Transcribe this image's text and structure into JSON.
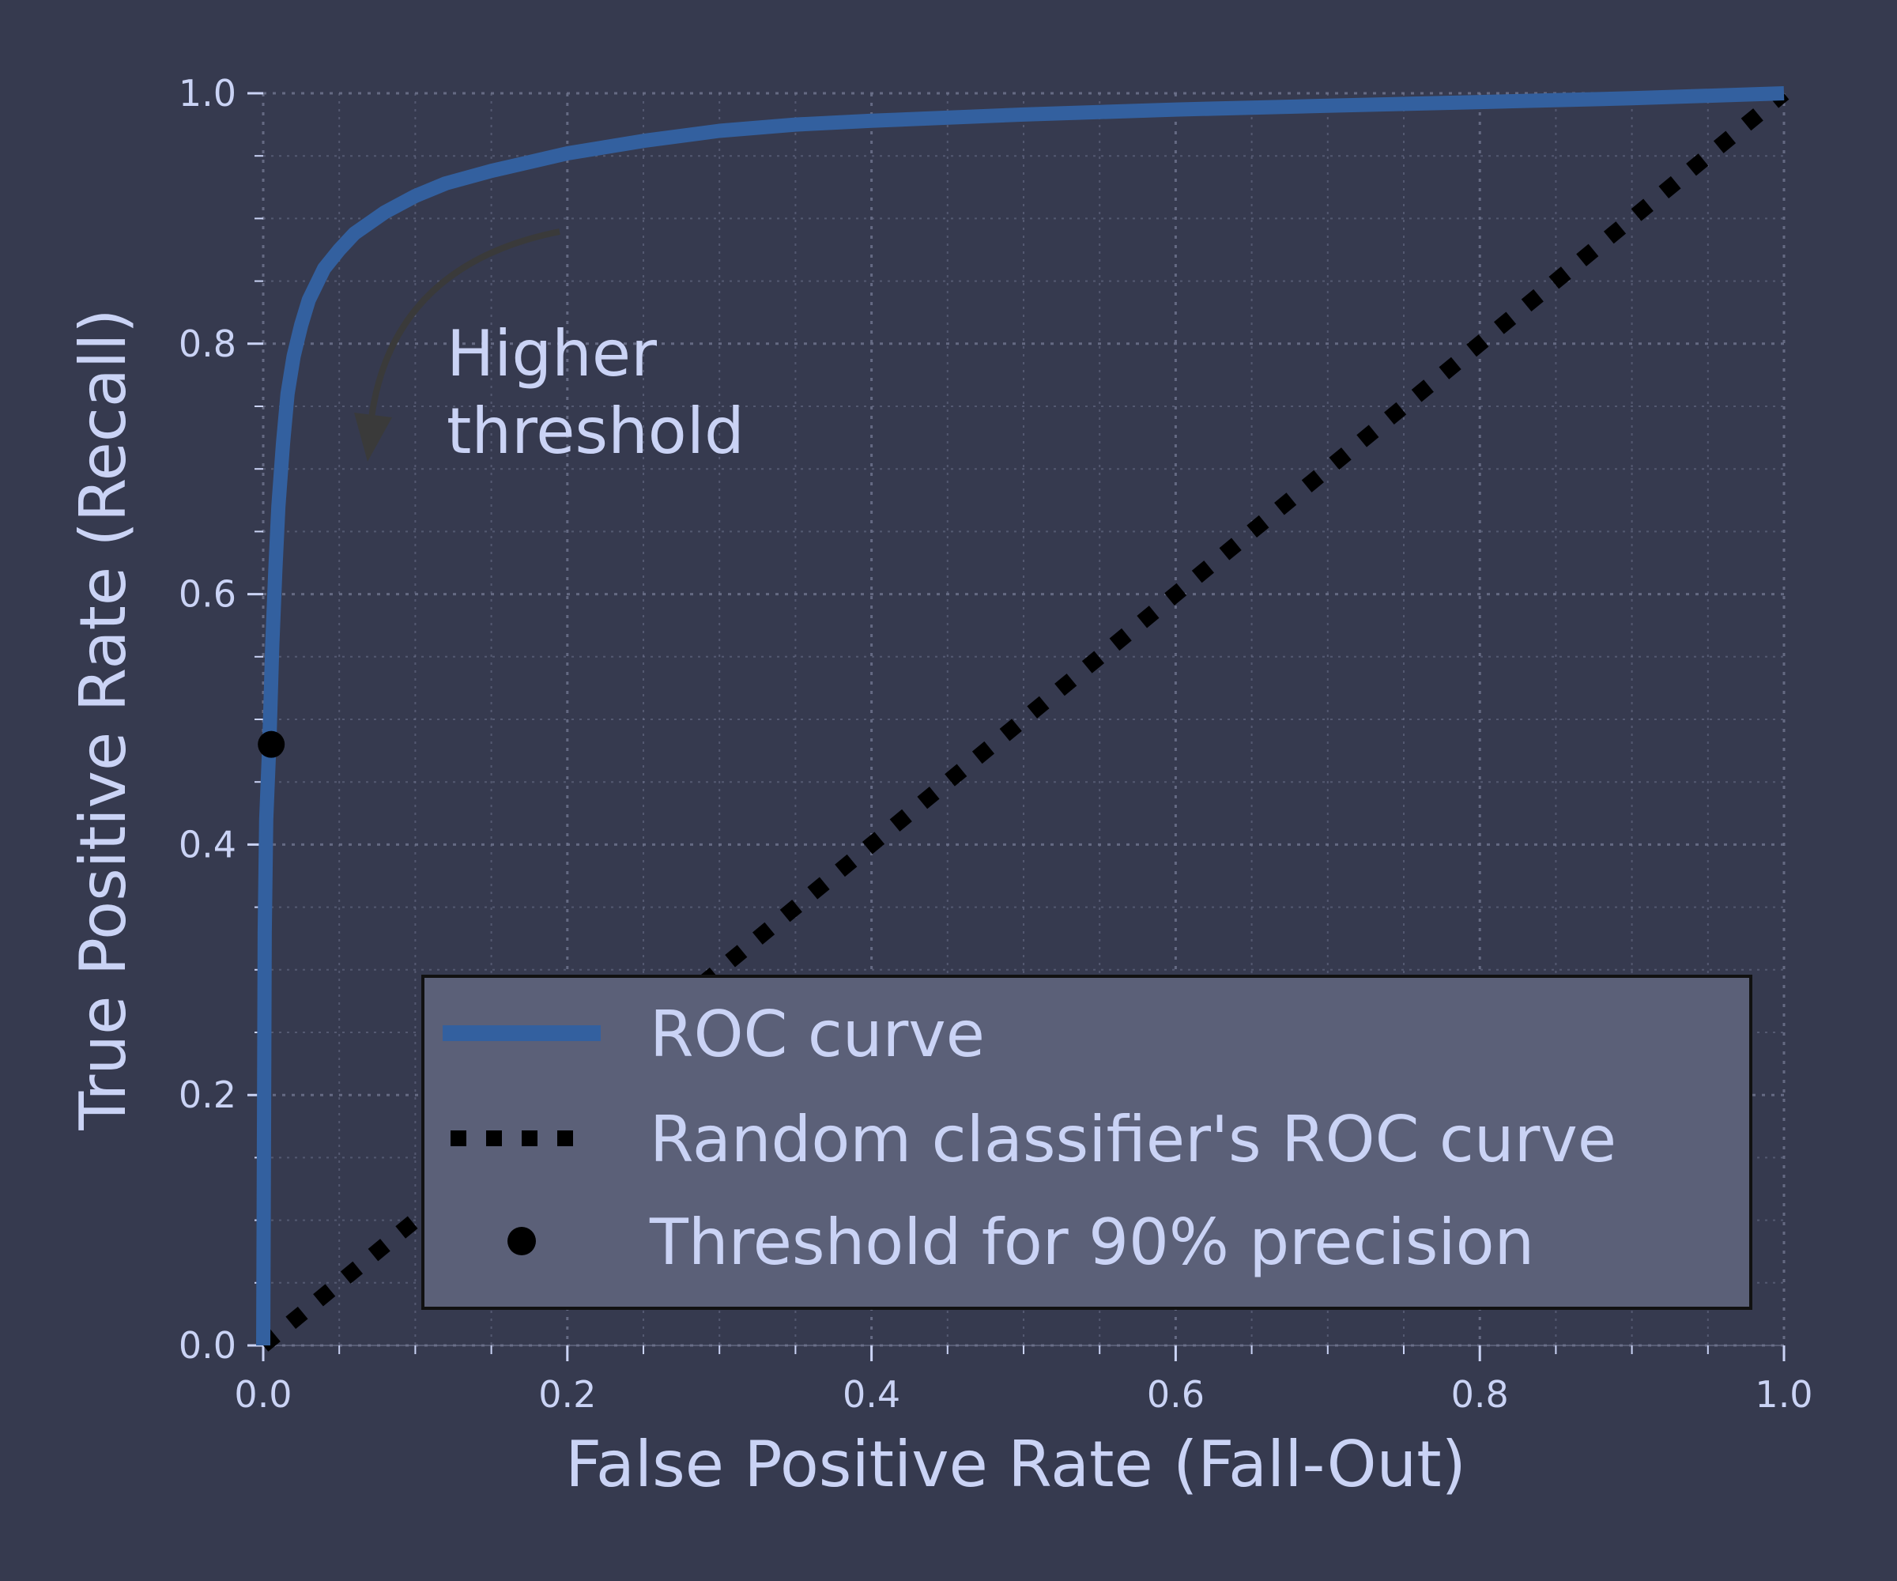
{
  "colors": {
    "background": "#363a4f",
    "text": "#cad3f5",
    "roc": "#33609f",
    "random": "#000000",
    "point": "#000000",
    "grid": "#6e738d",
    "arrow": "#3a3a3a",
    "legend_bg": "#5b6078",
    "legend_border": "#111111"
  },
  "chart_data": {
    "type": "line",
    "title": "",
    "xlabel": "False Positive Rate (Fall-Out)",
    "ylabel": "True Positive Rate (Recall)",
    "xlim": [
      0,
      1
    ],
    "ylim": [
      0,
      1
    ],
    "xticks": [
      "0.0",
      "0.2",
      "0.4",
      "0.6",
      "0.8",
      "1.0"
    ],
    "yticks": [
      "0.0",
      "0.2",
      "0.4",
      "0.6",
      "0.8",
      "1.0"
    ],
    "grid": true,
    "minor_grid": true,
    "legend_position": "lower-right",
    "series": [
      {
        "name": "ROC curve",
        "style": "solid",
        "x": [
          0.0,
          0.001,
          0.002,
          0.004,
          0.006,
          0.008,
          0.01,
          0.013,
          0.016,
          0.02,
          0.025,
          0.03,
          0.04,
          0.05,
          0.06,
          0.08,
          0.1,
          0.12,
          0.15,
          0.2,
          0.25,
          0.3,
          0.35,
          0.4,
          0.5,
          0.6,
          0.7,
          0.8,
          0.9,
          1.0
        ],
        "y": [
          0.0,
          0.33,
          0.42,
          0.48,
          0.56,
          0.62,
          0.67,
          0.72,
          0.76,
          0.79,
          0.815,
          0.835,
          0.86,
          0.875,
          0.888,
          0.905,
          0.918,
          0.928,
          0.938,
          0.952,
          0.962,
          0.97,
          0.975,
          0.978,
          0.983,
          0.987,
          0.99,
          0.993,
          0.996,
          1.0
        ]
      },
      {
        "name": "Random classifier's ROC curve",
        "style": "dotted",
        "x": [
          0,
          1
        ],
        "y": [
          0,
          1
        ]
      },
      {
        "name": "Threshold for 90% precision",
        "style": "marker",
        "x": [
          0.0053
        ],
        "y": [
          0.48
        ]
      }
    ],
    "annotations": [
      {
        "text_lines": [
          "Higher",
          "threshold"
        ],
        "arrow": true
      }
    ]
  }
}
